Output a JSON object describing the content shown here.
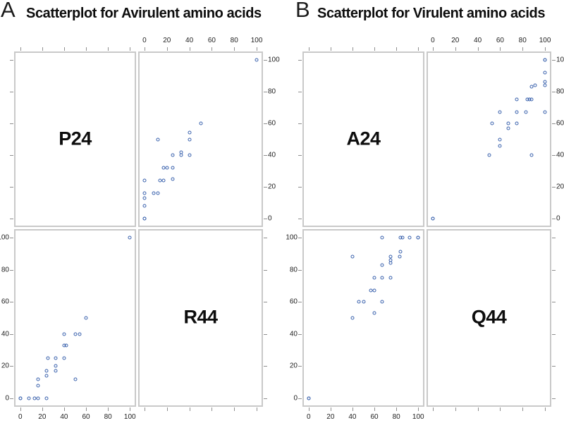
{
  "figure": {
    "background": "#ffffff"
  },
  "colors": {
    "marker": "#3a62ad",
    "cell_border": "#c9c9c9",
    "tick": "#8f8f8f",
    "text": "#111111"
  },
  "chart_data": [
    {
      "type": "scatter",
      "panel_letter": "A",
      "title": "Scatterplot for Avirulent amino acids",
      "variables": [
        "P24",
        "R44"
      ],
      "axis_ticks": [
        0,
        20,
        40,
        60,
        80,
        100
      ],
      "xlim": [
        0,
        100
      ],
      "ylim": [
        0,
        100
      ],
      "grid": false,
      "legend": false,
      "layout": "2x2 scatterplot matrix: diagonal cells show variable names P24 (top-left) and R44 (bottom-right); top-right cell plots R44 on x (labeled top axis) vs P24 on y (labeled right axis); bottom-left cell plots P24 on x (labeled bottom axis) vs R44 on y (labeled left axis); unlabeled ticks on outer edges of diagonal cells",
      "points_format": "[P24, R44]",
      "points": [
        [
          0,
          0
        ],
        [
          0,
          0
        ],
        [
          8,
          0
        ],
        [
          13,
          0
        ],
        [
          16,
          0
        ],
        [
          24,
          0
        ],
        [
          16,
          8
        ],
        [
          16,
          12
        ],
        [
          50,
          12
        ],
        [
          24,
          14
        ],
        [
          24,
          17
        ],
        [
          32,
          17
        ],
        [
          32,
          20
        ],
        [
          25,
          25
        ],
        [
          32,
          25
        ],
        [
          40,
          25
        ],
        [
          40,
          33
        ],
        [
          42,
          33
        ],
        [
          40,
          40
        ],
        [
          50,
          40
        ],
        [
          54,
          40
        ],
        [
          60,
          50
        ],
        [
          100,
          100
        ]
      ]
    },
    {
      "type": "scatter",
      "panel_letter": "B",
      "title": "Scatterplot for Virulent amino acids",
      "variables": [
        "A24",
        "Q44"
      ],
      "axis_ticks": [
        0,
        20,
        40,
        60,
        80,
        100
      ],
      "xlim": [
        0,
        100
      ],
      "ylim": [
        0,
        100
      ],
      "grid": false,
      "legend": false,
      "layout": "2x2 scatterplot matrix: diagonal cells show variable names A24 (top-left) and Q44 (bottom-right); top-right cell plots Q44 on x (labeled top axis) vs A24 on y (labeled right axis); bottom-left cell plots A24 on x (labeled bottom axis) vs Q44 on y (labeled left axis); unlabeled ticks on outer edges of diagonal cells",
      "points_format": "[A24, Q44]",
      "points": [
        [
          0,
          0
        ],
        [
          0,
          0
        ],
        [
          40,
          50
        ],
        [
          40,
          88
        ],
        [
          46,
          60
        ],
        [
          50,
          60
        ],
        [
          57,
          67
        ],
        [
          60,
          53
        ],
        [
          60,
          67
        ],
        [
          60,
          75
        ],
        [
          67,
          60
        ],
        [
          67,
          75
        ],
        [
          67,
          83
        ],
        [
          67,
          100
        ],
        [
          75,
          75
        ],
        [
          75,
          84
        ],
        [
          75,
          86
        ],
        [
          75,
          88
        ],
        [
          83,
          88
        ],
        [
          84,
          91
        ],
        [
          84,
          100
        ],
        [
          86,
          100
        ],
        [
          92,
          100
        ],
        [
          100,
          100
        ],
        [
          100,
          100
        ]
      ]
    }
  ]
}
